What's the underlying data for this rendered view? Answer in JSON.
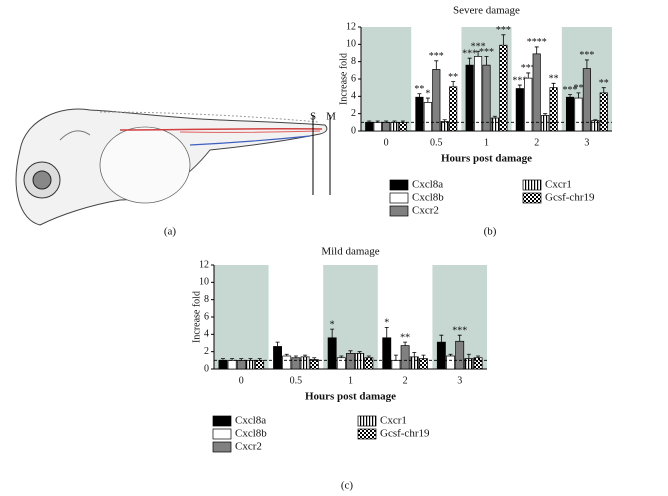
{
  "panel_labels": {
    "a": "(a)",
    "b": "(b)",
    "c": "(c)"
  },
  "fish": {
    "s_label": "S",
    "m_label": "M"
  },
  "chart_data": [
    {
      "type": "bar",
      "title": "Severe damage",
      "x_label": "Hours post damage",
      "y_label": "Increase fold",
      "categories": [
        "0",
        "0.5",
        "1",
        "2",
        "3"
      ],
      "shaded": [
        true,
        false,
        true,
        false,
        true
      ],
      "hline": 1,
      "ylim": [
        0,
        12
      ],
      "yticks": [
        0,
        2,
        4,
        6,
        8,
        10,
        12
      ],
      "series": [
        {
          "name": "Cxcl8a",
          "color": "#000000",
          "pattern": "solid",
          "values": [
            1,
            3.9,
            7.6,
            4.9,
            3.9
          ],
          "errors": [
            0.15,
            0.4,
            0.8,
            0.4,
            0.3
          ],
          "annotations": [
            null,
            "**",
            "***",
            "***",
            "***"
          ]
        },
        {
          "name": "Cxcl8b",
          "color": "#ffffff",
          "pattern": "solid",
          "values": [
            1,
            3.3,
            8.6,
            6.1,
            3.8
          ],
          "errors": [
            0.15,
            0.5,
            0.6,
            0.6,
            0.6
          ],
          "annotations": [
            null,
            "*",
            "***",
            "***",
            "**"
          ]
        },
        {
          "name": "Cxcr2",
          "color": "#808080",
          "pattern": "solid",
          "values": [
            1,
            7.1,
            7.6,
            8.9,
            7.2
          ],
          "errors": [
            0.15,
            1.0,
            1.0,
            0.8,
            1.0
          ],
          "annotations": [
            null,
            "***",
            "***",
            "****",
            "***"
          ]
        },
        {
          "name": "Cxcr1",
          "color": "#ffffff",
          "pattern": "vstripe",
          "values": [
            1,
            1.1,
            1.5,
            1.8,
            1.2
          ],
          "errors": [
            0.15,
            0.2,
            0.2,
            0.2,
            0.1
          ],
          "annotations": [
            null,
            null,
            null,
            null,
            null
          ]
        },
        {
          "name": "Gcsf-chr19",
          "color": "#ffffff",
          "pattern": "check",
          "values": [
            1,
            5.1,
            9.9,
            5.0,
            4.4
          ],
          "errors": [
            0.15,
            0.6,
            1.2,
            0.5,
            0.6
          ],
          "annotations": [
            null,
            "**",
            "***",
            "**",
            "**"
          ]
        }
      ]
    },
    {
      "type": "bar",
      "title": "Mild damage",
      "x_label": "Hours post damage",
      "y_label": "Increase fold",
      "categories": [
        "0",
        "0.5",
        "1",
        "2",
        "3"
      ],
      "shaded": [
        true,
        false,
        true,
        false,
        true
      ],
      "hline": 1,
      "ylim": [
        0,
        12
      ],
      "yticks": [
        0,
        2,
        4,
        6,
        8,
        10,
        12
      ],
      "series": [
        {
          "name": "Cxcl8a",
          "color": "#000000",
          "pattern": "solid",
          "values": [
            1,
            2.6,
            3.6,
            3.6,
            3.1
          ],
          "errors": [
            0.2,
            0.5,
            1.0,
            1.2,
            0.8
          ],
          "annotations": [
            null,
            null,
            "*",
            "*",
            null
          ]
        },
        {
          "name": "Cxcl8b",
          "color": "#ffffff",
          "pattern": "solid",
          "values": [
            1,
            1.5,
            1.3,
            1.0,
            1.5
          ],
          "errors": [
            0.2,
            0.2,
            0.2,
            0.6,
            0.2
          ],
          "annotations": [
            null,
            null,
            null,
            null,
            null
          ]
        },
        {
          "name": "Cxcr2",
          "color": "#808080",
          "pattern": "solid",
          "values": [
            1,
            1.3,
            1.8,
            2.7,
            3.2
          ],
          "errors": [
            0.2,
            0.2,
            0.3,
            0.4,
            0.7
          ],
          "annotations": [
            null,
            null,
            null,
            "**",
            "***"
          ]
        },
        {
          "name": "Cxcr1",
          "color": "#ffffff",
          "pattern": "vstripe",
          "values": [
            1,
            1.4,
            1.8,
            1.4,
            1.2
          ],
          "errors": [
            0.2,
            0.2,
            0.2,
            0.5,
            0.5
          ],
          "annotations": [
            null,
            null,
            null,
            null,
            null
          ]
        },
        {
          "name": "Gcsf-chr19",
          "color": "#ffffff",
          "pattern": "check",
          "values": [
            1,
            1.1,
            1.3,
            1.2,
            1.3
          ],
          "errors": [
            0.2,
            0.2,
            0.2,
            0.4,
            0.2
          ],
          "annotations": [
            null,
            null,
            null,
            null,
            null
          ]
        }
      ]
    }
  ]
}
